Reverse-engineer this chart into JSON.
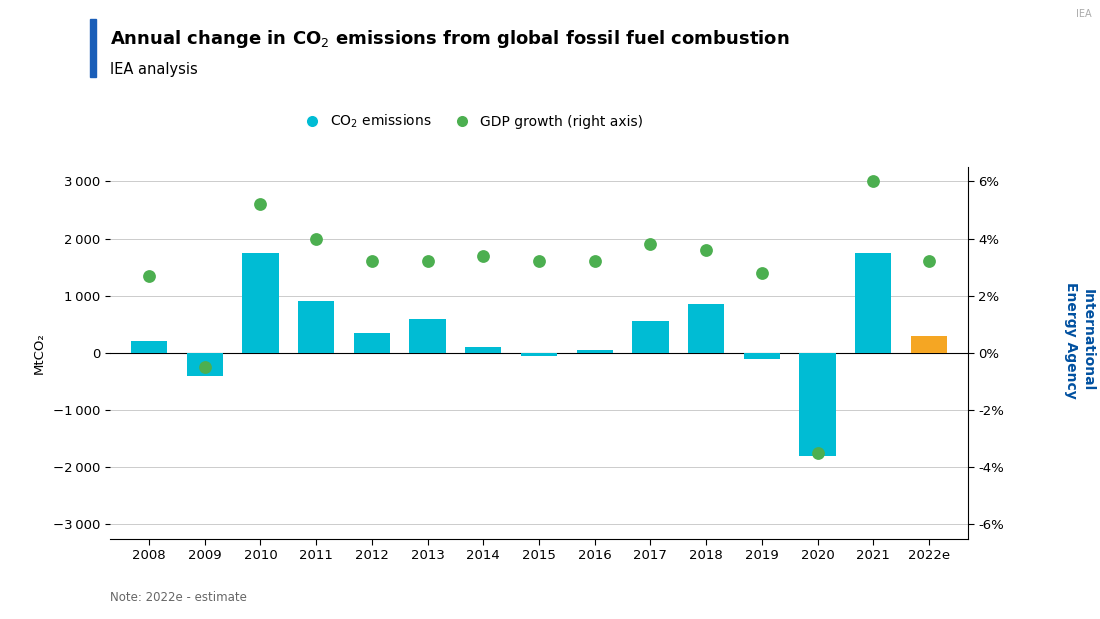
{
  "years": [
    "2008",
    "2009",
    "2010",
    "2011",
    "2012",
    "2013",
    "2014",
    "2015",
    "2016",
    "2017",
    "2018",
    "2019",
    "2020",
    "2021",
    "2022e"
  ],
  "co2_values": [
    200,
    -400,
    1750,
    900,
    350,
    600,
    100,
    -50,
    50,
    550,
    850,
    -100,
    -1800,
    1750,
    300
  ],
  "gdp_values": [
    2.7,
    -0.5,
    5.2,
    4.0,
    3.2,
    3.2,
    3.4,
    3.2,
    3.2,
    3.8,
    3.6,
    2.8,
    -3.5,
    6.0,
    3.2
  ],
  "bar_colors": [
    "#00bcd4",
    "#00bcd4",
    "#00bcd4",
    "#00bcd4",
    "#00bcd4",
    "#00bcd4",
    "#00bcd4",
    "#00bcd4",
    "#00bcd4",
    "#00bcd4",
    "#00bcd4",
    "#00bcd4",
    "#00bcd4",
    "#00bcd4",
    "#f5a623"
  ],
  "gdp_dot_color": "#4caf50",
  "co2_dot_color": "#00bcd4",
  "title_line1": "Annual change in CO",
  "title_line1_sub": "2",
  "title_line1_rest": " emissions from global fossil fuel combustion",
  "subtitle": "IEA analysis",
  "ylabel_left": "MtCO₂",
  "note": "Note: 2022e - estimate",
  "ylim_left": [
    -3250,
    3250
  ],
  "ylim_right": [
    -6.5,
    6.5
  ],
  "yticks_left": [
    -3000,
    -2000,
    -1000,
    0,
    1000,
    2000,
    3000
  ],
  "yticks_right": [
    -6,
    -4,
    -2,
    0,
    2,
    4,
    6
  ],
  "bg_color": "#ffffff",
  "grid_color": "#cccccc",
  "title_color": "#000000",
  "iea_color": "#0050a0",
  "blue_accent_color": "#1a5eb8",
  "bar_width": 0.65,
  "legend_co2_label": "CO₂ emissions",
  "legend_gdp_label": "GDP growth (right axis)",
  "iea_label": "IEA",
  "iea_right_label": "International\nEnergy Agency",
  "note_color": "#666666"
}
